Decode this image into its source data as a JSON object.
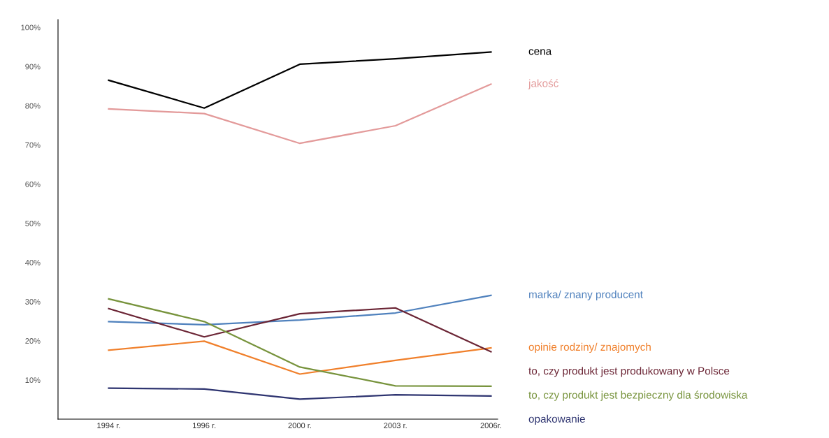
{
  "chart_data": {
    "type": "line",
    "categories": [
      "1994 r.",
      "1996 r.",
      "2000 r.",
      "2003 r.",
      "2006r."
    ],
    "ylim": [
      0,
      102
    ],
    "yticks": [
      {
        "value": 10,
        "label": "10%"
      },
      {
        "value": 20,
        "label": "20%"
      },
      {
        "value": 30,
        "label": "30%"
      },
      {
        "value": 40,
        "label": "40%"
      },
      {
        "value": 50,
        "label": "50%"
      },
      {
        "value": 60,
        "label": "60%"
      },
      {
        "value": 70,
        "label": "70%"
      },
      {
        "value": 80,
        "label": "80%"
      },
      {
        "value": 90,
        "label": "90%"
      },
      {
        "value": 100,
        "label": "100%"
      }
    ],
    "grid": false,
    "legend": false,
    "marker": "none",
    "line_style": "solid",
    "series": [
      {
        "name": "cena",
        "color": "#000000",
        "values": [
          86.5,
          79.4,
          90.6,
          92,
          93.7
        ]
      },
      {
        "name": "jakość",
        "color": "#e39a9a",
        "values": [
          79.2,
          78,
          70.4,
          74.9,
          85.5
        ]
      },
      {
        "name": "marka/ znany producent",
        "color": "#4f81bd",
        "values": [
          24.9,
          24.1,
          25.3,
          27.1,
          31.6
        ]
      },
      {
        "name": "opinie rodziny/ znajomych",
        "color": "#f07f2a",
        "values": [
          17.6,
          19.9,
          11.5,
          15,
          18.2
        ]
      },
      {
        "name": "to, czy produkt jest produkowany w Polsce",
        "color": "#6b2535",
        "values": [
          28.2,
          21,
          26.9,
          28.4,
          17.2
        ]
      },
      {
        "name": "to, czy produkt jest bezpieczny dla środowiska",
        "color": "#77933c",
        "values": [
          30.7,
          24.9,
          13.3,
          8.5,
          8.4
        ]
      },
      {
        "name": "opakowanie",
        "color": "#2e3470",
        "values": [
          7.9,
          7.7,
          5.1,
          6.2,
          5.9
        ]
      }
    ]
  }
}
